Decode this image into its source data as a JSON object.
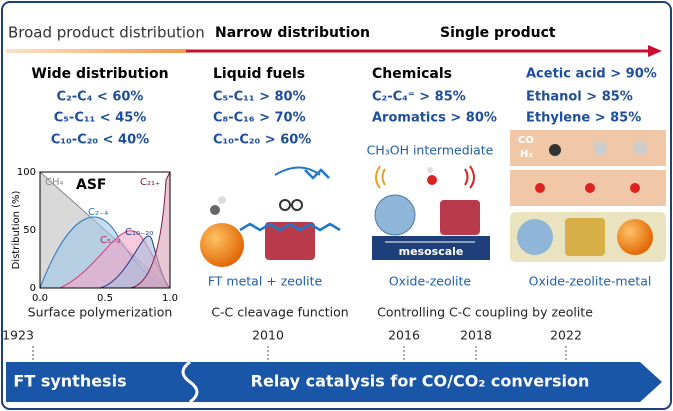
{
  "header": {
    "left": "Broad product distribution",
    "middle": "Narrow distribution",
    "right": "Single product"
  },
  "columns": [
    {
      "title": "Wide distribution",
      "lines": [
        "C₂-C₄ < 60%",
        "C₅-C₁₁ < 45%",
        "C₁₀-C₂₀ < 40%"
      ],
      "caption": "Surface polymerization",
      "plot": {
        "y_label": "Distribution (%)",
        "yticks": [
          "0",
          "50",
          "100"
        ],
        "xticks": [
          "0.0",
          "0.5",
          "1.0"
        ],
        "curves": [
          "CH₄",
          "ASF",
          "C₂₋₄",
          "C₅₋₉",
          "C₁₀₋₂₀",
          "C₂₁₊"
        ]
      }
    },
    {
      "title": "Liquid fuels",
      "lines": [
        "C₅-C₁₁ > 80%",
        "C₈-C₁₆ > 70%",
        "C₁₀-C₂₀ > 60%"
      ],
      "label": "FT metal + zeolite",
      "caption": "C-C cleavage function"
    },
    {
      "title": "Chemicals",
      "lines": [
        "C₂-C₄⁼ > 85%",
        "Aromatics > 80%"
      ],
      "intermediate": "CH₃OH intermediate",
      "scale": "mesoscale",
      "label": "Oxide-zeolite"
    },
    {
      "lines": [
        "Acetic acid > 90%",
        "Ethanol > 85%",
        "Ethylene > 85%"
      ],
      "gas": [
        "CO",
        "H₂"
      ],
      "label": "Oxide-zeolite-metal"
    }
  ],
  "shared_caption": "Controlling C-C coupling by zeolite",
  "timeline": {
    "years": [
      "1923",
      "2010",
      "2016",
      "2018",
      "2022"
    ],
    "left": "FT synthesis",
    "right": "Relay catalysis for CO/CO₂ conversion"
  }
}
